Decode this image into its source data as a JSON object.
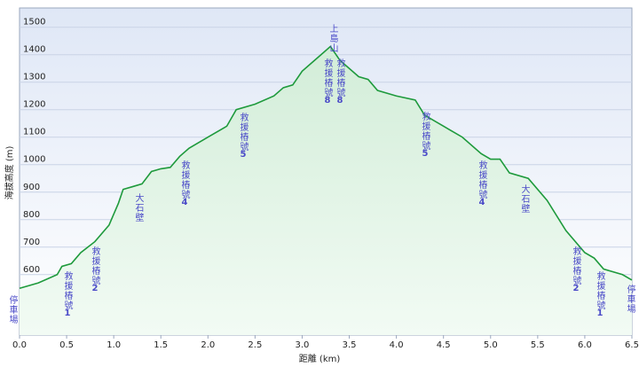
{
  "chart_data": {
    "type": "line",
    "x_label": "距離 (km)",
    "y_label": "海拔高度 (m)",
    "x": [
      0,
      0.2,
      0.4,
      0.45,
      0.55,
      0.65,
      0.8,
      0.95,
      1.05,
      1.1,
      1.2,
      1.3,
      1.4,
      1.5,
      1.6,
      1.7,
      1.8,
      2.0,
      2.2,
      2.3,
      2.5,
      2.7,
      2.8,
      2.9,
      3.0,
      3.1,
      3.2,
      3.3,
      3.4,
      3.5,
      3.6,
      3.7,
      3.8,
      4.0,
      4.2,
      4.3,
      4.5,
      4.7,
      4.9,
      5.0,
      5.1,
      5.2,
      5.4,
      5.6,
      5.8,
      6.0,
      6.1,
      6.2,
      6.4,
      6.5
    ],
    "values": [
      550,
      570,
      600,
      630,
      640,
      680,
      720,
      780,
      860,
      910,
      920,
      930,
      975,
      985,
      990,
      1030,
      1060,
      1100,
      1140,
      1200,
      1220,
      1250,
      1280,
      1290,
      1340,
      1370,
      1400,
      1430,
      1380,
      1350,
      1320,
      1310,
      1270,
      1250,
      1235,
      1180,
      1140,
      1100,
      1040,
      1020,
      1020,
      970,
      950,
      870,
      760,
      680,
      660,
      620,
      600,
      580
    ],
    "color": "#1e9a3c",
    "xlim": [
      0,
      6.5
    ],
    "xticks": [
      {
        "value": 0,
        "label": "0.0"
      },
      0.5,
      {
        "value": 1,
        "label": "1.0"
      },
      1.5,
      {
        "value": 2,
        "label": "2.0"
      },
      2.5,
      {
        "value": 3,
        "label": "3.0"
      },
      3.5,
      {
        "value": 4,
        "label": "4.0"
      },
      4.5,
      {
        "value": 5,
        "label": "5.0"
      },
      5.5,
      {
        "value": 6,
        "label": "6.0"
      },
      6.5
    ],
    "ylim": [
      380,
      1570
    ],
    "yticks": [
      500,
      600,
      700,
      800,
      900,
      1000,
      1100,
      1200,
      1300,
      1400,
      1500
    ],
    "grid": true,
    "annotations": [
      {
        "text": "停車場"
      },
      {
        "text": "救援樁號",
        "number": "1"
      },
      {
        "text": "救援樁號",
        "number": "2"
      },
      {
        "text": "大石壁"
      },
      {
        "text": "救援樁號",
        "number": "4"
      },
      {
        "text": "救援樁號",
        "number": "5"
      },
      {
        "text": "上島山"
      },
      {
        "text": "救援樁號",
        "number": "8"
      },
      {
        "text": "救援樁號",
        "number": "8"
      },
      {
        "text": "救援樁號",
        "number": "5"
      },
      {
        "text": "救援樁號",
        "number": "4"
      },
      {
        "text": "大石壁"
      },
      {
        "text": "救援樁號",
        "number": "2"
      },
      {
        "text": "救援樁號",
        "number": "1"
      },
      {
        "text": "停車場"
      }
    ]
  }
}
